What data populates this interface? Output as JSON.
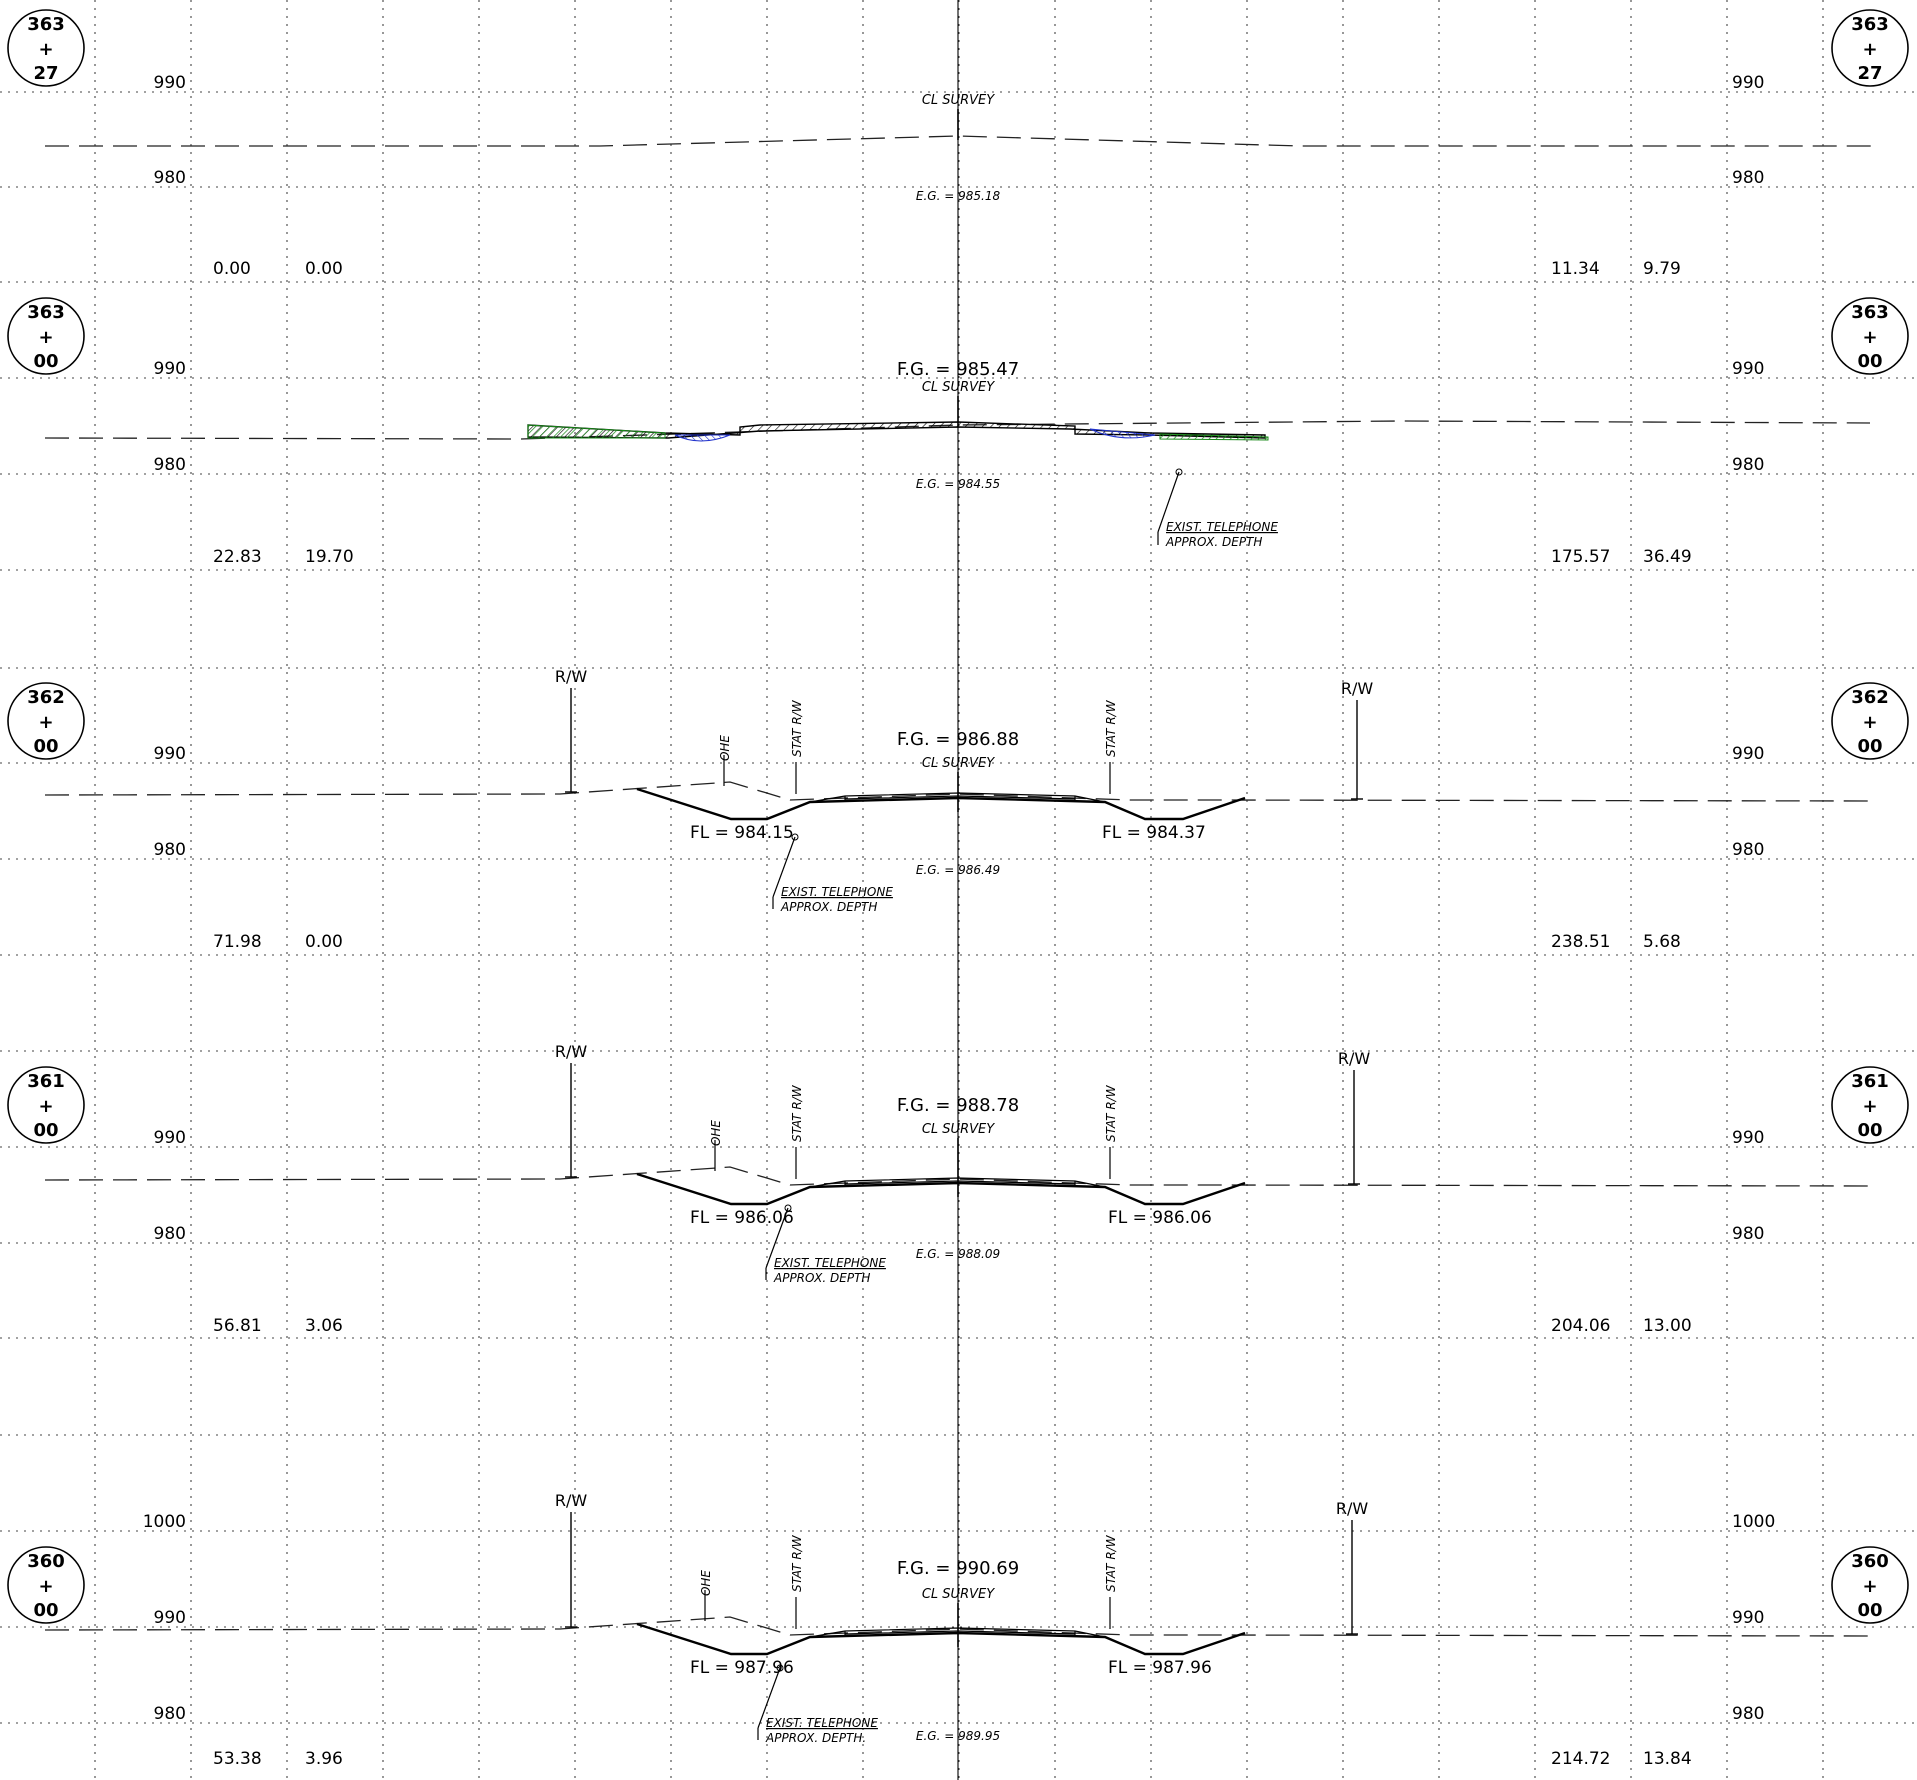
{
  "drawing": {
    "type": "cross-sections",
    "sections": [
      {
        "station": {
          "top": "363",
          "mid": "+",
          "bottom": "27"
        },
        "grid_labels": {
          "upper": "990",
          "lower": "980"
        },
        "fg": null,
        "eg_label": "E.G. = 985.18",
        "cl_label": "CL SURVEY",
        "area_left": {
          "a": "0.00",
          "b": "0.00"
        },
        "area_right": {
          "a": "11.34",
          "b": "9.79"
        },
        "rw_label": null,
        "fl_left": null,
        "fl_right": null,
        "ohe_label": null,
        "stat_rw_label": null,
        "telephone": null
      },
      {
        "station": {
          "top": "363",
          "mid": "+",
          "bottom": "00"
        },
        "grid_labels": {
          "upper": "990",
          "lower": "980"
        },
        "fg": "F.G. = 985.47",
        "eg_label": "E.G. = 984.55",
        "cl_label": "CL SURVEY",
        "area_left": {
          "a": "22.83",
          "b": "19.70"
        },
        "area_right": {
          "a": "175.57",
          "b": "36.49"
        },
        "rw_label": null,
        "fl_left": null,
        "fl_right": null,
        "ohe_label": null,
        "stat_rw_label": null,
        "telephone": {
          "line1": "EXIST. TELEPHONE",
          "line2": "APPROX. DEPTH"
        }
      },
      {
        "station": {
          "top": "362",
          "mid": "+",
          "bottom": "00"
        },
        "grid_labels": {
          "upper": "990",
          "lower": "980"
        },
        "fg": "F.G. = 986.88",
        "eg_label": "E.G. = 986.49",
        "cl_label": "CL SURVEY",
        "area_left": {
          "a": "71.98",
          "b": "0.00"
        },
        "area_right": {
          "a": "238.51",
          "b": "5.68"
        },
        "rw_label": "R/W",
        "fl_left": "FL = 984.15",
        "fl_right": "FL = 984.37",
        "ohe_label": "OHE",
        "stat_rw_label": "STAT R/W",
        "telephone": {
          "line1": "EXIST. TELEPHONE",
          "line2": "APPROX. DEPTH"
        }
      },
      {
        "station": {
          "top": "361",
          "mid": "+",
          "bottom": "00"
        },
        "grid_labels": {
          "upper": "990",
          "lower": "980"
        },
        "fg": "F.G. = 988.78",
        "eg_label": "E.G. = 988.09",
        "cl_label": "CL SURVEY",
        "area_left": {
          "a": "56.81",
          "b": "3.06"
        },
        "area_right": {
          "a": "204.06",
          "b": "13.00"
        },
        "rw_label": "R/W",
        "fl_left": "FL = 986.06",
        "fl_right": "FL = 986.06",
        "ohe_label": "OHE",
        "stat_rw_label": "STAT R/W",
        "telephone": {
          "line1": "EXIST. TELEPHONE",
          "line2": "APPROX. DEPTH"
        }
      },
      {
        "station": {
          "top": "360",
          "mid": "+",
          "bottom": "00"
        },
        "grid_labels": {
          "top": "1000",
          "upper": "990",
          "lower": "980"
        },
        "fg": "F.G. = 990.69",
        "eg_label": "E.G. = 989.95",
        "cl_label": "CL SURVEY",
        "area_left": {
          "a": "53.38",
          "b": "3.96"
        },
        "area_right": {
          "a": "214.72",
          "b": "13.84"
        },
        "rw_label": "R/W",
        "fl_left": "FL = 987.96",
        "fl_right": "FL = 987.96",
        "ohe_label": "OHE",
        "stat_rw_label": "STAT R/W",
        "telephone": {
          "line1": "EXIST. TELEPHONE",
          "line2": "APPROX. DEPTH."
        }
      }
    ]
  }
}
